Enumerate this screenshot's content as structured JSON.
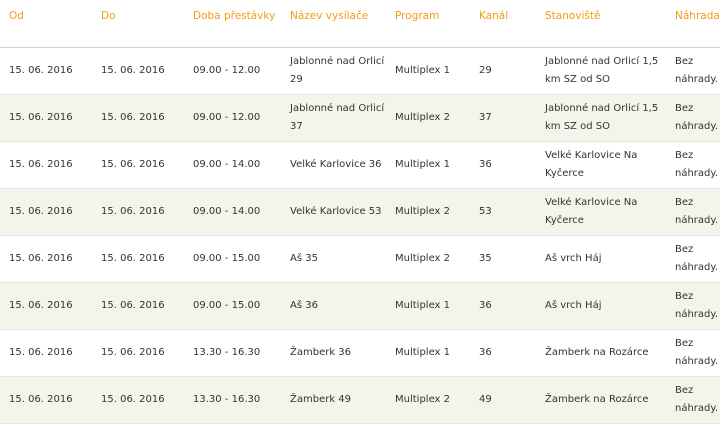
{
  "table": {
    "headers": {
      "od": "Od",
      "do": "Do",
      "doba": "Doba přestávky",
      "nazev": "Název vysílače",
      "program": "Program",
      "kanal": "Kanál",
      "stanoviste": "Stanoviště",
      "nahrada": "Náhrada"
    },
    "rows": [
      {
        "od": "15. 06. 2016",
        "do": "15. 06. 2016",
        "doba": "09.00 - 12.00",
        "nazev": "Jablonné nad Orlicí 29",
        "program": "Multiplex 1",
        "kanal": "29",
        "stanoviste": "Jablonné nad Orlicí 1,5 km SZ od SO",
        "nahrada": "Bez náhrady."
      },
      {
        "od": "15. 06. 2016",
        "do": "15. 06. 2016",
        "doba": "09.00 - 12.00",
        "nazev": "Jablonné nad Orlicí 37",
        "program": "Multiplex 2",
        "kanal": "37",
        "stanoviste": "Jablonné nad Orlicí 1,5 km SZ od SO",
        "nahrada": "Bez náhrady."
      },
      {
        "od": "15. 06. 2016",
        "do": "15. 06. 2016",
        "doba": "09.00 - 14.00",
        "nazev": "Velké Karlovice 36",
        "program": "Multiplex 1",
        "kanal": "36",
        "stanoviste": "Velké Karlovice Na Kyčerce",
        "nahrada": "Bez náhrady."
      },
      {
        "od": "15. 06. 2016",
        "do": "15. 06. 2016",
        "doba": "09.00 - 14.00",
        "nazev": "Velké Karlovice 53",
        "program": "Multiplex 2",
        "kanal": "53",
        "stanoviste": "Velké Karlovice Na Kyčerce",
        "nahrada": "Bez náhrady."
      },
      {
        "od": "15. 06. 2016",
        "do": "15. 06. 2016",
        "doba": "09.00 - 15.00",
        "nazev": "Aš 35",
        "program": "Multiplex 2",
        "kanal": "35",
        "stanoviste": "Aš vrch Háj",
        "nahrada": "Bez náhrady."
      },
      {
        "od": "15. 06. 2016",
        "do": "15. 06. 2016",
        "doba": "09.00 - 15.00",
        "nazev": "Aš 36",
        "program": "Multiplex 1",
        "kanal": "36",
        "stanoviste": "Aš vrch Háj",
        "nahrada": "Bez náhrady."
      },
      {
        "od": "15. 06. 2016",
        "do": "15. 06. 2016",
        "doba": "13.30 - 16.30",
        "nazev": "Žamberk 36",
        "program": "Multiplex 1",
        "kanal": "36",
        "stanoviste": "Žamberk na Rozárce",
        "nahrada": "Bez náhrady."
      },
      {
        "od": "15. 06. 2016",
        "do": "15. 06. 2016",
        "doba": "13.30 - 16.30",
        "nazev": "Žamberk 49",
        "program": "Multiplex 2",
        "kanal": "49",
        "stanoviste": "Žamberk na Rozárce",
        "nahrada": "Bez náhrady."
      }
    ]
  }
}
